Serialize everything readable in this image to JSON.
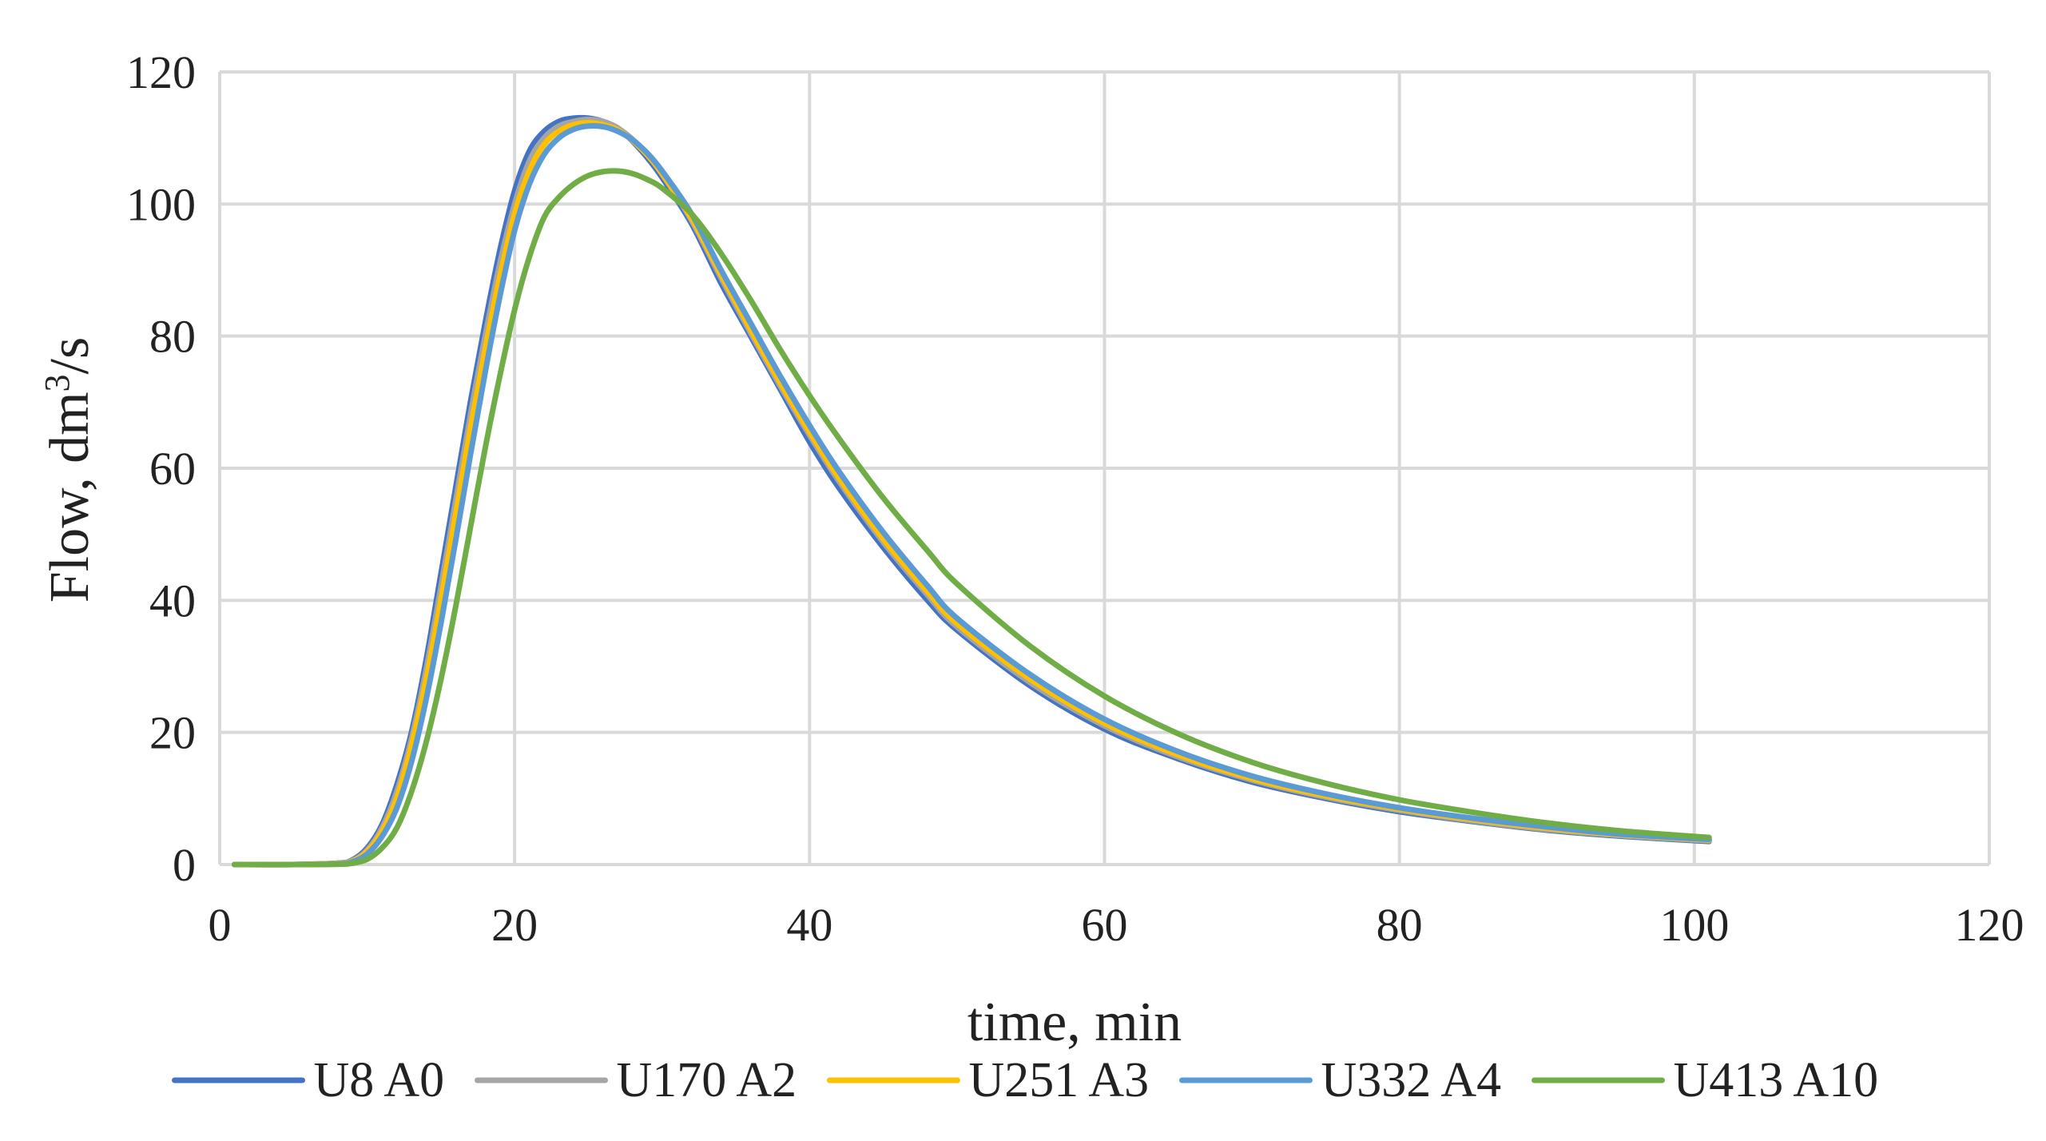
{
  "chart_data": {
    "type": "line",
    "title": "",
    "xlabel": "time, min",
    "ylabel_main": "Flow, dm",
    "ylabel_sup": "3",
    "ylabel_tail": "/s",
    "xlim": [
      0,
      120
    ],
    "ylim": [
      0,
      120
    ],
    "x_ticks": [
      0,
      20,
      40,
      60,
      80,
      100,
      120
    ],
    "y_ticks": [
      0,
      20,
      40,
      60,
      80,
      100,
      120
    ],
    "grid": true,
    "legend_position": "bottom",
    "series": [
      {
        "name": "U8 A0",
        "color": "#4472C4",
        "x": [
          1,
          5,
          8,
          9,
          10,
          11,
          12,
          13,
          14,
          15,
          16,
          17,
          18,
          19,
          20,
          21,
          22,
          23,
          24,
          25,
          26,
          27,
          28,
          29,
          30,
          32,
          34,
          36,
          38,
          40,
          42,
          45,
          48,
          50,
          55,
          60,
          65,
          70,
          75,
          80,
          85,
          90,
          95,
          101
        ],
        "y": [
          0,
          0,
          0.2,
          0.7,
          2.5,
          6,
          12,
          20,
          31,
          44,
          57,
          70,
          82,
          93,
          102,
          108,
          111,
          112.5,
          113,
          113,
          112.5,
          111.5,
          109.5,
          107,
          104,
          97,
          88,
          80,
          72,
          64,
          57,
          48,
          40,
          35.5,
          27,
          20.5,
          16,
          12.5,
          10,
          8,
          6.5,
          5.2,
          4.3,
          3.5
        ]
      },
      {
        "name": "U170 A2",
        "color": "#A5A5A5",
        "x": [
          1,
          5,
          8,
          9,
          10,
          11,
          12,
          13,
          14,
          15,
          16,
          17,
          18,
          19,
          20,
          21,
          22,
          23,
          24,
          25,
          26,
          27,
          28,
          29,
          30,
          32,
          34,
          36,
          38,
          40,
          42,
          45,
          48,
          50,
          55,
          60,
          65,
          70,
          75,
          80,
          85,
          90,
          95,
          101
        ],
        "y": [
          0,
          0,
          0.2,
          0.6,
          2.2,
          5.5,
          11,
          19,
          29.5,
          42,
          55,
          68,
          80,
          91,
          100,
          106.5,
          110,
          111.8,
          112.5,
          112.8,
          112.5,
          111.5,
          109.8,
          107.5,
          104.5,
          97.5,
          88.8,
          80.5,
          72.5,
          65,
          58,
          48.8,
          40.8,
          36,
          27.5,
          21,
          16.3,
          12.8,
          10.2,
          8.2,
          6.6,
          5.3,
          4.4,
          3.6
        ]
      },
      {
        "name": "U251 A3",
        "color": "#FFC000",
        "x": [
          1,
          5,
          8,
          9,
          10,
          11,
          12,
          13,
          14,
          15,
          16,
          17,
          18,
          19,
          20,
          21,
          22,
          23,
          24,
          25,
          26,
          27,
          28,
          29,
          30,
          32,
          34,
          36,
          38,
          40,
          42,
          45,
          48,
          50,
          55,
          60,
          65,
          70,
          75,
          80,
          85,
          90,
          95,
          101
        ],
        "y": [
          0,
          0,
          0.15,
          0.5,
          2,
          5,
          10,
          18,
          28,
          40,
          53,
          66,
          78,
          89,
          98.5,
          105,
          109,
          111,
          112,
          112.3,
          112,
          111.2,
          109.6,
          107.4,
          104.6,
          97.8,
          89.3,
          81,
          73,
          65.5,
          58.5,
          49.3,
          41.3,
          36.5,
          28,
          21.4,
          16.6,
          13,
          10.4,
          8.4,
          6.8,
          5.5,
          4.5,
          3.7
        ]
      },
      {
        "name": "U332 A4",
        "color": "#5B9BD5",
        "x": [
          1,
          5,
          8,
          9,
          10,
          11,
          12,
          13,
          14,
          15,
          16,
          17,
          18,
          19,
          20,
          21,
          22,
          23,
          24,
          25,
          26,
          27,
          28,
          29,
          30,
          32,
          34,
          36,
          38,
          40,
          42,
          45,
          48,
          50,
          55,
          60,
          65,
          70,
          75,
          80,
          85,
          90,
          95,
          101
        ],
        "y": [
          0,
          0,
          0.1,
          0.4,
          1.6,
          4.2,
          8.5,
          15.5,
          25,
          36.5,
          49,
          62,
          74.5,
          86,
          96,
          103,
          107.5,
          110,
          111.3,
          111.8,
          111.7,
          111,
          109.7,
          107.7,
          105,
          98.5,
          90,
          82,
          74,
          66.5,
          59.5,
          50.3,
          42.2,
          37.3,
          28.7,
          22,
          17.1,
          13.4,
          10.7,
          8.6,
          7,
          5.7,
          4.6,
          3.8
        ]
      },
      {
        "name": "U413 A10",
        "color": "#70AD47",
        "x": [
          1,
          5,
          8,
          9,
          10,
          11,
          12,
          13,
          14,
          15,
          16,
          17,
          18,
          19,
          20,
          21,
          22,
          23,
          24,
          25,
          26,
          27,
          28,
          29,
          30,
          32,
          34,
          36,
          38,
          40,
          42,
          45,
          48,
          50,
          55,
          60,
          65,
          70,
          75,
          80,
          85,
          90,
          95,
          101
        ],
        "y": [
          0,
          0,
          0.05,
          0.2,
          0.8,
          2.5,
          5.5,
          11,
          18.5,
          28,
          39,
          51,
          63,
          74,
          84,
          92,
          98,
          101,
          103,
          104.3,
          104.9,
          105,
          104.6,
          103.7,
          102.4,
          98.5,
          92.5,
          85.5,
          78,
          71,
          64.5,
          55.5,
          47.5,
          42.5,
          33,
          25.5,
          19.8,
          15.5,
          12.3,
          9.8,
          7.9,
          6.3,
          5.1,
          4.1
        ]
      }
    ]
  }
}
